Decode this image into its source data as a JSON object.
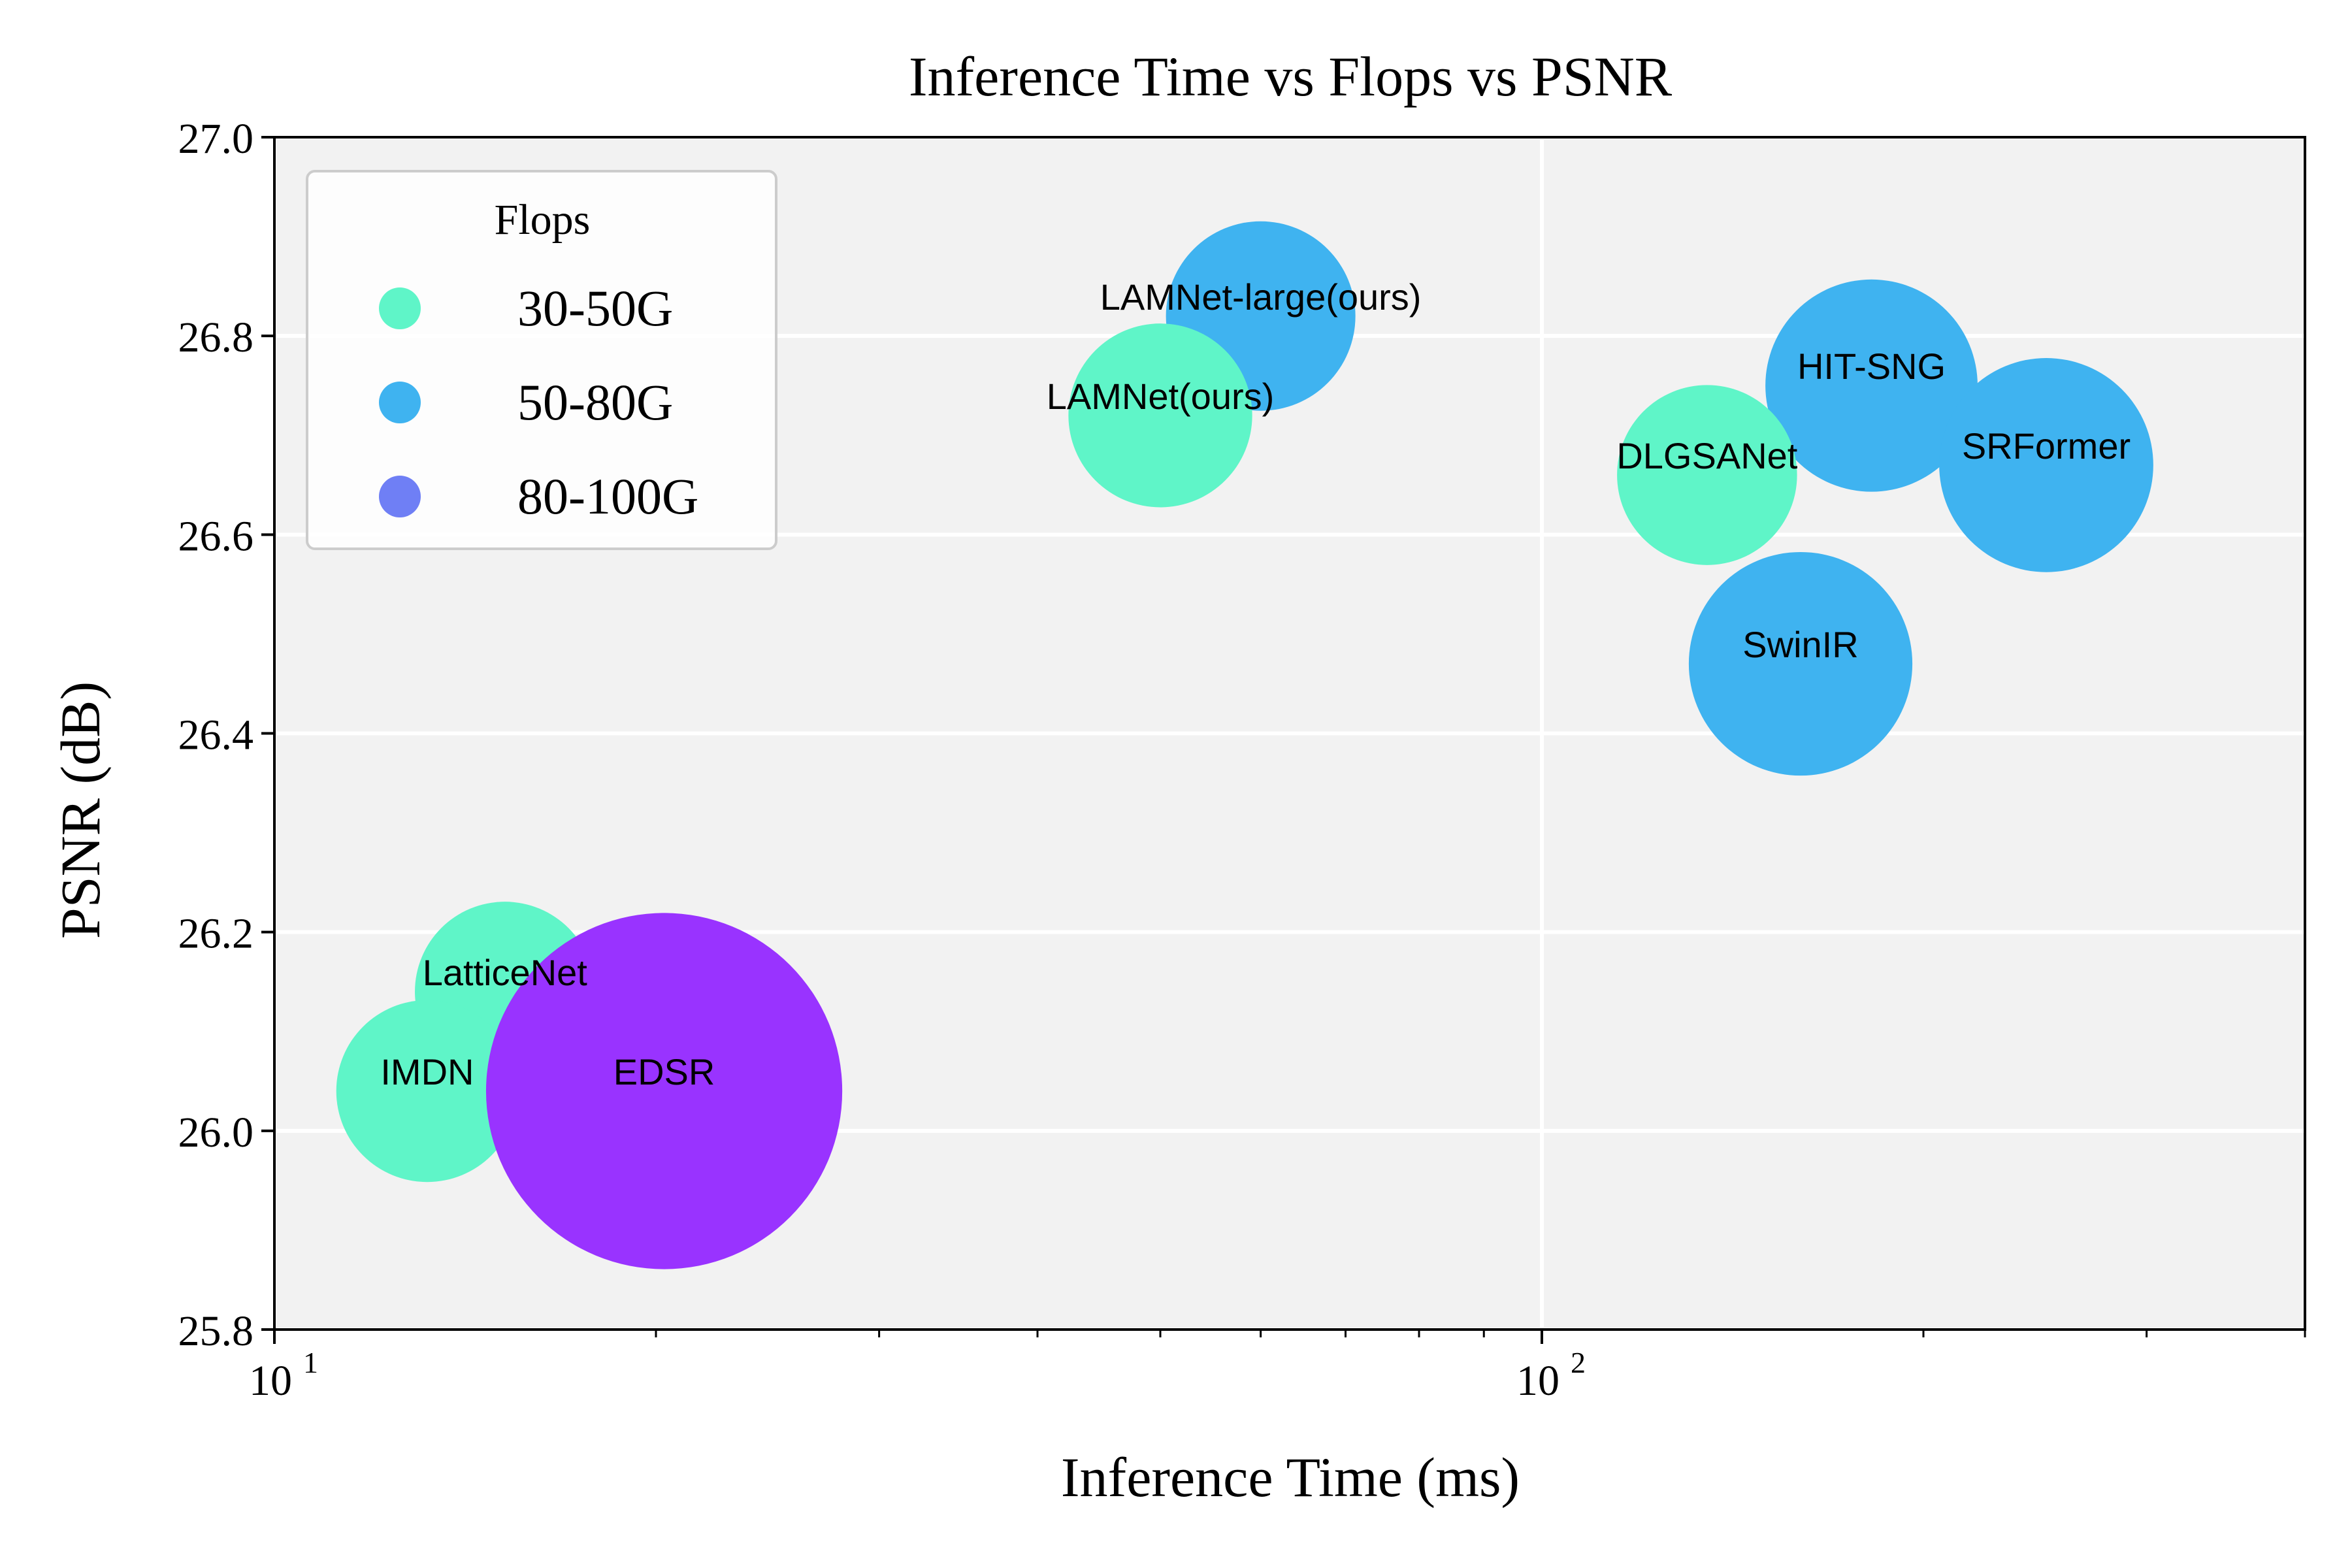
{
  "chart_data": {
    "type": "scatter",
    "title": "Inference Time vs Flops vs PSNR",
    "xlabel": "Inference Time (ms)",
    "ylabel": "PSNR (dB)",
    "x_scale": "log",
    "xlim": [
      10,
      400
    ],
    "ylim": [
      25.8,
      27.0
    ],
    "y_ticks": [
      "25.8",
      "26.0",
      "26.2",
      "26.4",
      "26.6",
      "26.8",
      "27.0"
    ],
    "x_ticks": [
      {
        "base": "10",
        "exp": "1",
        "value": 10
      },
      {
        "base": "10",
        "exp": "2",
        "value": 100
      }
    ],
    "grid": true,
    "legend": {
      "title": "Flops",
      "position": "top-left",
      "entries": [
        {
          "label": "30-50G",
          "color": "#5ff5c8"
        },
        {
          "label": "50-80G",
          "color": "#3fb3f0"
        },
        {
          "label": "80-100G",
          "color": "#6f7ff5"
        }
      ]
    },
    "points": [
      {
        "label": "LAMNet-large(ours)",
        "x": 60,
        "y": 26.82,
        "group": "50-80G",
        "color": "#3fb3f0",
        "size": 1.0
      },
      {
        "label": "LAMNet(ours)",
        "x": 50,
        "y": 26.72,
        "group": "30-50G",
        "color": "#5ff5c8",
        "size": 0.97
      },
      {
        "label": "HIT-SNG",
        "x": 182,
        "y": 26.75,
        "group": "50-80G",
        "color": "#3fb3f0",
        "size": 1.12
      },
      {
        "label": "SRFormer",
        "x": 250,
        "y": 26.67,
        "group": "50-80G",
        "color": "#3fb3f0",
        "size": 1.13
      },
      {
        "label": "DLGSANet",
        "x": 135,
        "y": 26.66,
        "group": "30-50G",
        "color": "#5ff5c8",
        "size": 0.95
      },
      {
        "label": "SwinIR",
        "x": 160,
        "y": 26.47,
        "group": "50-80G",
        "color": "#3fb3f0",
        "size": 1.18
      },
      {
        "label": "LatticeNet",
        "x": 15.2,
        "y": 26.14,
        "group": "30-50G",
        "color": "#5ff5c8",
        "size": 0.95
      },
      {
        "label": "IMDN",
        "x": 13.2,
        "y": 26.04,
        "group": "30-50G",
        "color": "#5ff5c8",
        "size": 0.96
      },
      {
        "label": "EDSR",
        "x": 20.3,
        "y": 26.04,
        "group": "80-100G",
        "color": "#9933ff",
        "size": 1.88
      }
    ]
  }
}
